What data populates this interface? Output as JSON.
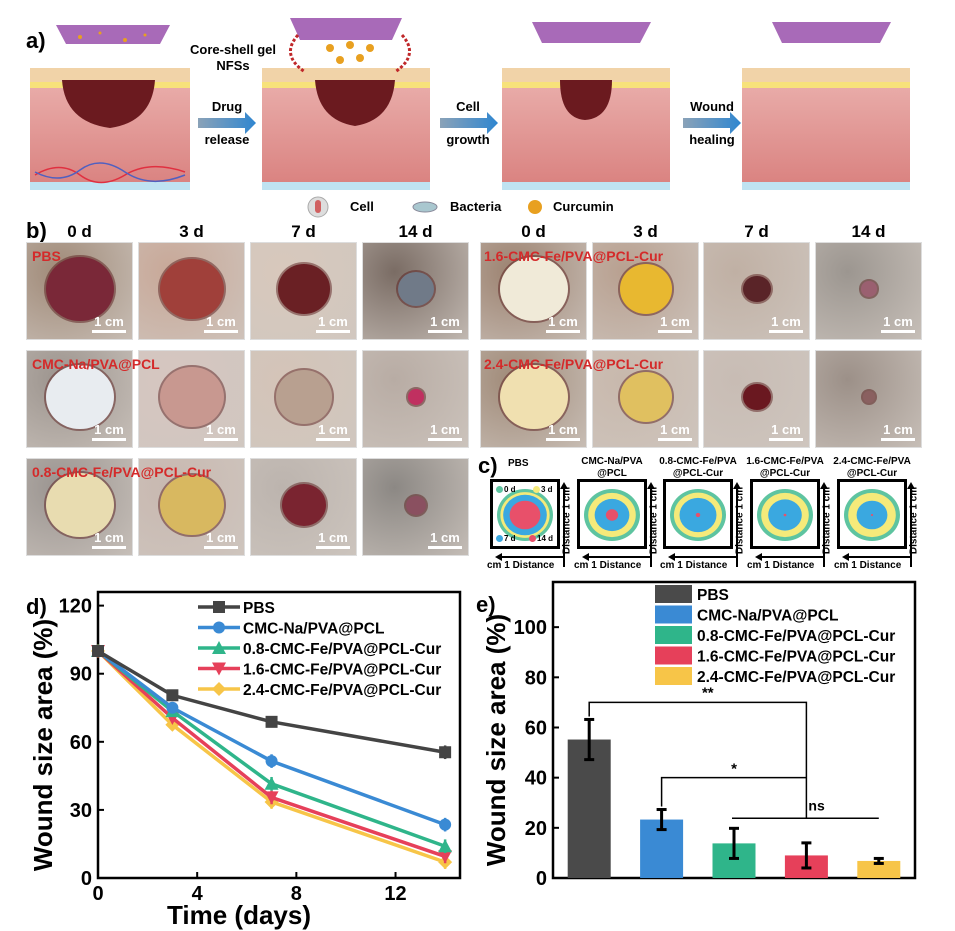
{
  "panel_labels": {
    "a": "a)",
    "b": "b)",
    "c": "c)",
    "d": "d)",
    "e": "e)"
  },
  "panel_a": {
    "nfs_label_line1": "Core-shell gel",
    "nfs_label_line2": "NFSs",
    "stages": [
      {
        "arrow_top": "Drug",
        "arrow_bottom": "release"
      },
      {
        "arrow_top": "Cell",
        "arrow_bottom": "growth"
      },
      {
        "arrow_top": "Wound",
        "arrow_bottom": "healing"
      }
    ],
    "legend": [
      {
        "icon": "cell-icon",
        "label": "Cell"
      },
      {
        "icon": "bacteria-icon",
        "label": "Bacteria"
      },
      {
        "icon": "curcumin-icon",
        "label": "Curcumin"
      }
    ],
    "colors": {
      "membrane": "#a05bb0",
      "wound": "#6b1a1f",
      "skin": "#e8a0a0",
      "epidermis": "#f1d3a8",
      "fat": "#f7e27a",
      "arrow": "#3a86c8",
      "curcumin": "#e8a020"
    }
  },
  "panel_b": {
    "days": [
      "0 d",
      "3 d",
      "7 d",
      "14 d"
    ],
    "scale_label": "1 cm",
    "groups_left": [
      {
        "name": "PBS"
      },
      {
        "name": "CMC-Na/PVA@PCL"
      },
      {
        "name": "0.8-CMC-Fe/PVA@PCL-Cur"
      }
    ],
    "groups_right": [
      {
        "name": "1.6-CMC-Fe/PVA@PCL-Cur"
      },
      {
        "name": "2.4-CMC-Fe/PVA@PCL-Cur"
      }
    ],
    "label_color": "#d42a2a"
  },
  "panel_c": {
    "groups": [
      {
        "title_line1": "PBS",
        "title_line2": ""
      },
      {
        "title_line1": "CMC-Na/PVA",
        "title_line2": "@PCL"
      },
      {
        "title_line1": "0.8-CMC-Fe/PVA",
        "title_line2": "@PCL-Cur"
      },
      {
        "title_line1": "1.6-CMC-Fe/PVA",
        "title_line2": "@PCL-Cur"
      },
      {
        "title_line1": "2.4-CMC-Fe/PVA",
        "title_line2": "@PCL-Cur"
      }
    ],
    "legend": [
      {
        "label": "0 d",
        "color": "#5ec4a0"
      },
      {
        "label": "3 d",
        "color": "#f5ea7a"
      },
      {
        "label": "7 d",
        "color": "#3aa8e0"
      },
      {
        "label": "14 d",
        "color": "#e8506a"
      }
    ],
    "axis_x_label": "cm 1  Distance",
    "axis_y_label": "Distance  1 cm",
    "relative_sizes": [
      [
        1.0,
        0.88,
        0.78,
        0.55
      ],
      [
        1.0,
        0.85,
        0.62,
        0.22
      ],
      [
        1.0,
        0.86,
        0.66,
        0.08
      ],
      [
        1.0,
        0.85,
        0.6,
        0.05
      ],
      [
        1.0,
        0.85,
        0.55,
        0.04
      ]
    ]
  },
  "chart_data": [
    {
      "type": "line",
      "title": "",
      "xlabel": "Time (days)",
      "ylabel": "Wound size area (%)",
      "x": [
        0,
        3,
        7,
        14
      ],
      "xlim": [
        0,
        14.6
      ],
      "ylim": [
        0,
        126
      ],
      "xticks": [
        0,
        4,
        8,
        12
      ],
      "yticks": [
        0,
        30,
        60,
        90,
        120
      ],
      "legend_position": "top-right",
      "series": [
        {
          "name": "PBS",
          "color": "#444444",
          "marker": "square",
          "values": [
            100,
            80.5,
            68.8,
            55.4
          ],
          "errors": [
            2,
            2.5,
            2.5,
            3
          ]
        },
        {
          "name": "CMC-Na/PVA@PCL",
          "color": "#3a8ad4",
          "marker": "circle",
          "values": [
            100,
            75,
            51.5,
            23.5
          ],
          "errors": [
            2,
            2,
            3,
            3
          ]
        },
        {
          "name": "0.8-CMC-Fe/PVA@PCL-Cur",
          "color": "#2fb58a",
          "marker": "triangle-up",
          "values": [
            100,
            73.5,
            41.5,
            14
          ],
          "errors": [
            2,
            2,
            3,
            3
          ]
        },
        {
          "name": "1.6-CMC-Fe/PVA@PCL-Cur",
          "color": "#e6405a",
          "marker": "triangle-down",
          "values": [
            100,
            70.5,
            35.5,
            9.5
          ],
          "errors": [
            2,
            2,
            3,
            3
          ]
        },
        {
          "name": "2.4-CMC-Fe/PVA@PCL-Cur",
          "color": "#f7c548",
          "marker": "diamond",
          "values": [
            100,
            67.5,
            33.5,
            7
          ],
          "errors": [
            2,
            2,
            3,
            3
          ]
        }
      ]
    },
    {
      "type": "bar",
      "title": "",
      "xlabel": "",
      "ylabel": "Wound size area (%)",
      "categories": [
        "PBS",
        "CMC-Na/PVA@PCL",
        "0.8-CMC-Fe/PVA@PCL-Cur",
        "1.6-CMC-Fe/PVA@PCL-Cur",
        "2.4-CMC-Fe/PVA@PCL-Cur"
      ],
      "values": [
        55.2,
        23.3,
        13.8,
        9.0,
        6.8
      ],
      "errors": [
        8,
        4,
        6,
        5,
        1
      ],
      "colors": [
        "#4a4a4a",
        "#3a8ad4",
        "#2fb58a",
        "#e6405a",
        "#f7c548"
      ],
      "ylim": [
        0,
        118
      ],
      "yticks": [
        0,
        20,
        40,
        60,
        80,
        100
      ],
      "legend_position": "top-right",
      "significance": [
        {
          "label": "**",
          "from": 0,
          "to_bracket": 3,
          "level": 70
        },
        {
          "label": "*",
          "from": 1,
          "to_bracket": 3,
          "level": 40
        },
        {
          "label": "ns",
          "from": 2,
          "to": 4,
          "level": 23.8
        }
      ]
    }
  ]
}
